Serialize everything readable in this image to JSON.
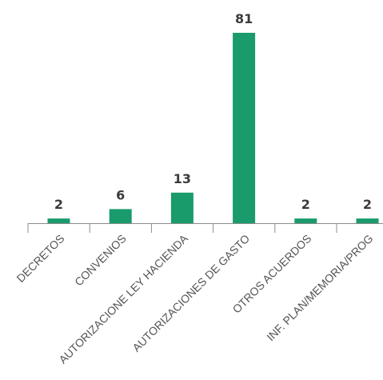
{
  "chart_data": {
    "type": "bar",
    "categories": [
      "DECRETOS",
      "CONVENIOS",
      "AUTORIZACIONE LEY HACIENDA",
      "AUTORIZACIONES DE GASTO",
      "OTROS ACUERDOS",
      "INF. PLAN/MEMORIA/PROG"
    ],
    "values": [
      2,
      6,
      13,
      81,
      2,
      2
    ],
    "data_labels": [
      "2",
      "6",
      "13",
      "81",
      "2",
      "2"
    ],
    "title": "",
    "xlabel": "",
    "ylabel": "",
    "ylim": [
      0,
      81
    ],
    "grid": false,
    "legend": "none",
    "bar_color": "#1a9b6c",
    "axis_color": "#8c8c8c"
  }
}
